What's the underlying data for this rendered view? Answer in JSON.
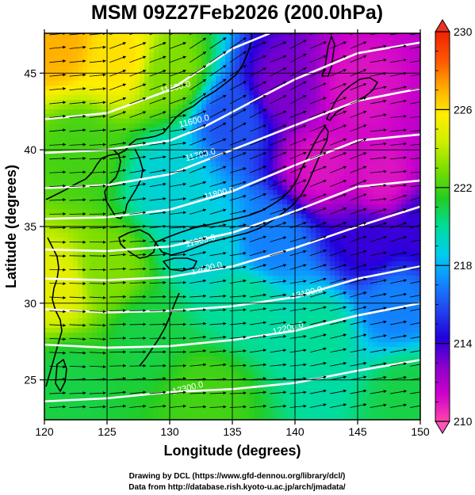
{
  "title": "MSM 09Z27Feb2026 (200.0hPa)",
  "xlabel": "Longitude (degrees)",
  "ylabel": "Latitude  (degrees)",
  "x_ticks": [
    "120",
    "125",
    "130",
    "135",
    "140",
    "145",
    "150"
  ],
  "y_ticks": [
    "25",
    "30",
    "35",
    "40",
    "45"
  ],
  "colorbar": {
    "ticks": [
      "230",
      "226",
      "222",
      "218",
      "214",
      "210"
    ],
    "min": 210,
    "max": 230,
    "colors": [
      "#ff44aa",
      "#cc00cc",
      "#8800cc",
      "#2200dd",
      "#2244ee",
      "#1188ff",
      "#00ccee",
      "#00dd99",
      "#22cc22",
      "#77dd00",
      "#ccee00",
      "#ffee00",
      "#ffaa00",
      "#ff5500",
      "#ee2200"
    ]
  },
  "contour_labels": [
    "11500.0",
    "11600.0",
    "11700.0",
    "11800.0",
    "11900.0",
    "12000.0",
    "12100.0",
    "12200.0",
    "12300.0"
  ],
  "credits": {
    "line1": "Drawing by DCL (https://www.gfd-dennou.org/library/dcl/)",
    "line2": "Data from http://database.rish.kyoto-u.ac.jp/arch/jmadata/"
  },
  "chart_data": {
    "type": "heatmap",
    "title": "MSM 09Z27Feb2026 (200.0hPa)",
    "xlabel": "Longitude (degrees)",
    "ylabel": "Latitude  (degrees)",
    "xlim": [
      120,
      150
    ],
    "ylim": [
      22.4,
      47.6
    ],
    "value_range": [
      210,
      230
    ],
    "temperature_anchors": [
      {
        "lon": 121,
        "lat": 47,
        "value": 227
      },
      {
        "lon": 126,
        "lat": 46,
        "value": 226
      },
      {
        "lon": 130,
        "lat": 45,
        "value": 223
      },
      {
        "lon": 121,
        "lat": 31,
        "value": 225
      },
      {
        "lon": 125,
        "lat": 32,
        "value": 223
      },
      {
        "lon": 123,
        "lat": 40,
        "value": 222
      },
      {
        "lon": 130,
        "lat": 38,
        "value": 219
      },
      {
        "lon": 135,
        "lat": 42,
        "value": 216
      },
      {
        "lon": 139,
        "lat": 44,
        "value": 213
      },
      {
        "lon": 145,
        "lat": 44,
        "value": 211
      },
      {
        "lon": 142,
        "lat": 39,
        "value": 211
      },
      {
        "lon": 147,
        "lat": 38,
        "value": 211
      },
      {
        "lon": 146,
        "lat": 34,
        "value": 214
      },
      {
        "lon": 150,
        "lat": 35,
        "value": 214
      },
      {
        "lon": 138,
        "lat": 34,
        "value": 217
      },
      {
        "lon": 133,
        "lat": 34,
        "value": 219
      },
      {
        "lon": 136,
        "lat": 30,
        "value": 220
      },
      {
        "lon": 128,
        "lat": 28,
        "value": 221
      },
      {
        "lon": 122,
        "lat": 25,
        "value": 221
      },
      {
        "lon": 142,
        "lat": 28,
        "value": 220
      },
      {
        "lon": 148,
        "lat": 30,
        "value": 217
      },
      {
        "lon": 149,
        "lat": 24,
        "value": 221
      },
      {
        "lon": 133,
        "lat": 24,
        "value": 222
      }
    ],
    "height_contours": [
      {
        "label": "11500.0",
        "label_lon": 130.5,
        "label_lat": 43.9,
        "points": [
          [
            120,
            42.0
          ],
          [
            125,
            42.4
          ],
          [
            130,
            43.9
          ],
          [
            133,
            45.5
          ],
          [
            135,
            46.6
          ],
          [
            138,
            47.6
          ]
        ]
      },
      {
        "label": "11600.0",
        "label_lon": 132.0,
        "label_lat": 41.7,
        "points": [
          [
            120,
            39.8
          ],
          [
            125,
            40.0
          ],
          [
            130,
            40.6
          ],
          [
            133,
            41.6
          ],
          [
            136,
            42.9
          ],
          [
            140,
            44.6
          ],
          [
            145,
            46.3
          ],
          [
            150,
            47.0
          ]
        ]
      },
      {
        "label": "11700.0",
        "label_lon": 132.5,
        "label_lat": 39.5,
        "points": [
          [
            120,
            37.5
          ],
          [
            125,
            37.7
          ],
          [
            130,
            38.4
          ],
          [
            135,
            40.0
          ],
          [
            140,
            41.6
          ],
          [
            145,
            43.2
          ],
          [
            150,
            44.0
          ]
        ]
      },
      {
        "label": "11800.0",
        "label_lon": 134.0,
        "label_lat": 37.0,
        "points": [
          [
            120,
            35.5
          ],
          [
            125,
            35.6
          ],
          [
            130,
            36.1
          ],
          [
            135,
            37.3
          ],
          [
            140,
            39.0
          ],
          [
            145,
            40.6
          ],
          [
            150,
            41.0
          ]
        ]
      },
      {
        "label": "11900.0",
        "label_lon": 132.5,
        "label_lat": 33.9,
        "points": [
          [
            120,
            33.5
          ],
          [
            125,
            33.4
          ],
          [
            130,
            33.7
          ],
          [
            135,
            34.6
          ],
          [
            140,
            36.0
          ],
          [
            145,
            37.6
          ],
          [
            150,
            38.0
          ]
        ]
      },
      {
        "label": "12000.0",
        "label_lon": 133.0,
        "label_lat": 32.1,
        "points": [
          [
            120,
            31.6
          ],
          [
            125,
            31.5
          ],
          [
            130,
            31.7
          ],
          [
            135,
            32.4
          ],
          [
            140,
            33.6
          ],
          [
            145,
            35.0
          ],
          [
            150,
            36.3
          ]
        ]
      },
      {
        "label": "12100.0",
        "label_lon": 141.0,
        "label_lat": 30.5,
        "points": [
          [
            120,
            29.6
          ],
          [
            125,
            29.4
          ],
          [
            130,
            29.5
          ],
          [
            135,
            29.8
          ],
          [
            140,
            30.4
          ],
          [
            145,
            31.6
          ],
          [
            150,
            32.4
          ]
        ]
      },
      {
        "label": "12200.0",
        "label_lon": 139.5,
        "label_lat": 28.2,
        "points": [
          [
            120,
            27.3
          ],
          [
            125,
            27.1
          ],
          [
            130,
            27.2
          ],
          [
            135,
            27.6
          ],
          [
            140,
            28.2
          ],
          [
            145,
            29.2
          ],
          [
            150,
            30.0
          ]
        ]
      },
      {
        "label": "12300.0",
        "label_lon": 131.5,
        "label_lat": 24.3,
        "points": [
          [
            120,
            23.6
          ],
          [
            125,
            23.8
          ],
          [
            130,
            24.2
          ],
          [
            135,
            24.4
          ],
          [
            140,
            24.8
          ],
          [
            145,
            25.6
          ],
          [
            150,
            26.3
          ]
        ]
      }
    ]
  }
}
